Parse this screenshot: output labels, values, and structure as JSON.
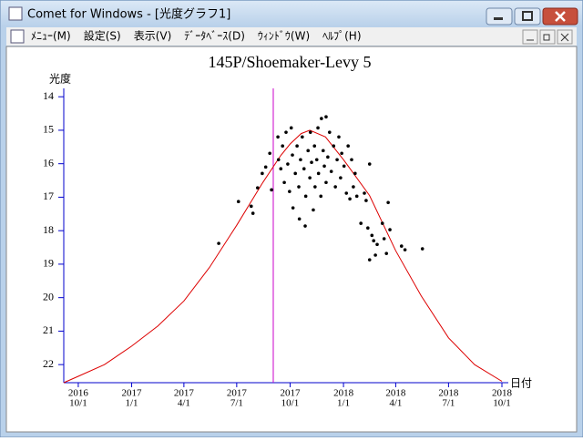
{
  "window": {
    "title": "Comet for Windows - [光度グラフ1]",
    "menu": [
      "ﾒﾆｭｰ(M)",
      "設定(S)",
      "表示(V)",
      "ﾃﾞｰﾀﾍﾞｰｽ(D)",
      "ｳｨﾝﾄﾞｳ(W)",
      "ﾍﾙﾌﾟ(H)"
    ]
  },
  "chart_data": {
    "type": "scatter",
    "title": "145P/Shoemaker-Levy 5",
    "y_label": "光度",
    "x_label": "日付",
    "y_inverted": true,
    "ylim": [
      13.75,
      22.54
    ],
    "yticks": [
      14,
      15,
      16,
      17,
      18,
      19,
      20,
      21,
      22
    ],
    "xlim": [
      "2016-09-06",
      "2018-10-12"
    ],
    "xticks": [
      {
        "value": "2016-10-01",
        "label": [
          "2016",
          "10/1"
        ]
      },
      {
        "value": "2017-01-01",
        "label": [
          "2017",
          "1/1"
        ]
      },
      {
        "value": "2017-04-01",
        "label": [
          "2017",
          "4/1"
        ]
      },
      {
        "value": "2017-07-01",
        "label": [
          "2017",
          "7/1"
        ]
      },
      {
        "value": "2017-10-01",
        "label": [
          "2017",
          "10/1"
        ]
      },
      {
        "value": "2018-01-01",
        "label": [
          "2018",
          "1/1"
        ]
      },
      {
        "value": "2018-04-01",
        "label": [
          "2018",
          "4/1"
        ]
      },
      {
        "value": "2018-07-01",
        "label": [
          "2018",
          "7/1"
        ]
      },
      {
        "value": "2018-10-01",
        "label": [
          "2018",
          "10/1"
        ]
      }
    ],
    "axis_color": "#0000cc",
    "marker_line": {
      "x": "2017-09-02",
      "color": "#cc00cc"
    },
    "curve": {
      "color": "#dd0000",
      "x": [
        "2016-09-06",
        "2016-10-01",
        "2016-11-15",
        "2017-01-01",
        "2017-02-15",
        "2017-04-01",
        "2017-05-15",
        "2017-07-01",
        "2017-08-15",
        "2017-09-15",
        "2017-10-01",
        "2017-10-20",
        "2017-11-04",
        "2017-12-01",
        "2018-01-01",
        "2018-02-15",
        "2018-04-01",
        "2018-05-15",
        "2018-07-01",
        "2018-08-15",
        "2018-10-01"
      ],
      "values": [
        22.54,
        22.35,
        22.0,
        21.45,
        20.85,
        20.1,
        19.1,
        17.84,
        16.56,
        15.75,
        15.41,
        15.1,
        15.0,
        15.2,
        15.88,
        16.95,
        18.6,
        19.95,
        21.2,
        22.0,
        22.5
      ]
    },
    "scatter": {
      "color": "#000000",
      "x": [
        "2017-05-31",
        "2017-07-04",
        "2017-07-26",
        "2017-07-29",
        "2017-08-06",
        "2017-08-14",
        "2017-08-20",
        "2017-08-27",
        "2017-08-30",
        "2017-09-10",
        "2017-09-11",
        "2017-09-15",
        "2017-09-18",
        "2017-09-21",
        "2017-09-24",
        "2017-09-27",
        "2017-09-30",
        "2017-10-03",
        "2017-10-05",
        "2017-10-06",
        "2017-10-10",
        "2017-10-13",
        "2017-10-16",
        "2017-10-17",
        "2017-10-19",
        "2017-10-22",
        "2017-10-25",
        "2017-10-27",
        "2017-10-28",
        "2017-11-01",
        "2017-11-04",
        "2017-11-05",
        "2017-11-07",
        "2017-11-10",
        "2017-11-12",
        "2017-11-13",
        "2017-11-16",
        "2017-11-18",
        "2017-11-19",
        "2017-11-23",
        "2017-11-24",
        "2017-11-27",
        "2017-11-29",
        "2017-12-02",
        "2017-12-02",
        "2017-12-05",
        "2017-12-08",
        "2017-12-11",
        "2017-12-15",
        "2017-12-18",
        "2017-12-21",
        "2017-12-24",
        "2017-12-27",
        "2017-12-29",
        "2018-01-02",
        "2018-01-06",
        "2018-01-09",
        "2018-01-12",
        "2018-01-15",
        "2018-01-18",
        "2018-01-21",
        "2018-01-24",
        "2018-01-31",
        "2018-02-06",
        "2018-02-09",
        "2018-02-12",
        "2018-02-15",
        "2018-02-19",
        "2018-02-22",
        "2018-02-25",
        "2018-02-15",
        "2018-02-28",
        "2018-03-09",
        "2018-03-12",
        "2018-03-16",
        "2018-03-19",
        "2018-03-22",
        "2018-04-11",
        "2018-04-17",
        "2018-05-17"
      ],
      "values": [
        18.38,
        17.13,
        17.27,
        17.48,
        16.72,
        16.29,
        16.1,
        15.69,
        16.78,
        15.2,
        15.88,
        16.15,
        15.47,
        16.56,
        15.06,
        16.01,
        16.83,
        14.93,
        15.74,
        17.32,
        16.29,
        15.47,
        16.69,
        17.65,
        15.88,
        15.2,
        16.15,
        17.86,
        16.97,
        15.61,
        16.42,
        15.06,
        15.96,
        17.38,
        15.47,
        16.69,
        15.88,
        14.93,
        16.29,
        16.97,
        14.65,
        15.61,
        16.07,
        14.6,
        16.56,
        15.8,
        15.06,
        16.23,
        15.47,
        16.69,
        15.88,
        15.2,
        16.42,
        15.69,
        16.07,
        16.88,
        15.47,
        17.05,
        15.88,
        16.69,
        16.29,
        16.97,
        17.78,
        16.88,
        17.1,
        17.92,
        16.01,
        18.14,
        18.3,
        18.73,
        18.87,
        18.41,
        17.78,
        18.24,
        18.68,
        17.16,
        17.97,
        18.46,
        18.57,
        18.54
      ]
    }
  }
}
